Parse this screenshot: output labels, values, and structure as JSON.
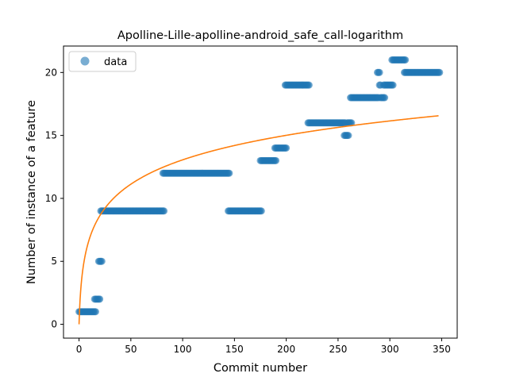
{
  "chart_data": {
    "type": "scatter",
    "title": "Apolline-Lille-apolline-android_safe_call-logarithm",
    "xlabel": "Commit number",
    "ylabel": "Number of instance of a feature",
    "xlim": [
      -15,
      365
    ],
    "ylim": [
      -1.1,
      22.1
    ],
    "x_ticks": [
      0,
      50,
      100,
      150,
      200,
      250,
      300,
      350
    ],
    "y_ticks": [
      0,
      5,
      10,
      15,
      20
    ],
    "grid": false,
    "legend": {
      "placement": "top-left",
      "entries": [
        "data"
      ]
    },
    "colors": {
      "data": "#1f77b4",
      "fit": "#ff7f0e"
    },
    "series": [
      {
        "name": "data",
        "kind": "points",
        "segments": [
          {
            "x_start": 0,
            "x_end": 16,
            "y": 1
          },
          {
            "x_start": 15,
            "x_end": 20,
            "y": 2
          },
          {
            "x_start": 19,
            "x_end": 22,
            "y": 5
          },
          {
            "x_start": 21,
            "x_end": 82,
            "y": 9
          },
          {
            "x_start": 81,
            "x_end": 145,
            "y": 12
          },
          {
            "x_start": 144,
            "x_end": 176,
            "y": 9
          },
          {
            "x_start": 175,
            "x_end": 190,
            "y": 13
          },
          {
            "x_start": 189,
            "x_end": 200,
            "y": 14
          },
          {
            "x_start": 199,
            "x_end": 222,
            "y": 19
          },
          {
            "x_start": 221,
            "x_end": 257,
            "y": 16
          },
          {
            "x_start": 256,
            "x_end": 260,
            "y": 15
          },
          {
            "x_start": 259,
            "x_end": 263,
            "y": 16
          },
          {
            "x_start": 262,
            "x_end": 289,
            "y": 18
          },
          {
            "x_start": 288,
            "x_end": 290,
            "y": 20
          },
          {
            "x_start": 290,
            "x_end": 291,
            "y": 19
          },
          {
            "x_start": 291,
            "x_end": 295,
            "y": 18
          },
          {
            "x_start": 294,
            "x_end": 303,
            "y": 19
          },
          {
            "x_start": 302,
            "x_end": 315,
            "y": 21
          },
          {
            "x_start": 314,
            "x_end": 348,
            "y": 20
          }
        ]
      },
      {
        "name": "fit",
        "kind": "line",
        "formula": "y = 2.83 * ln(x + 1)",
        "x_range": [
          0,
          347
        ]
      }
    ]
  }
}
